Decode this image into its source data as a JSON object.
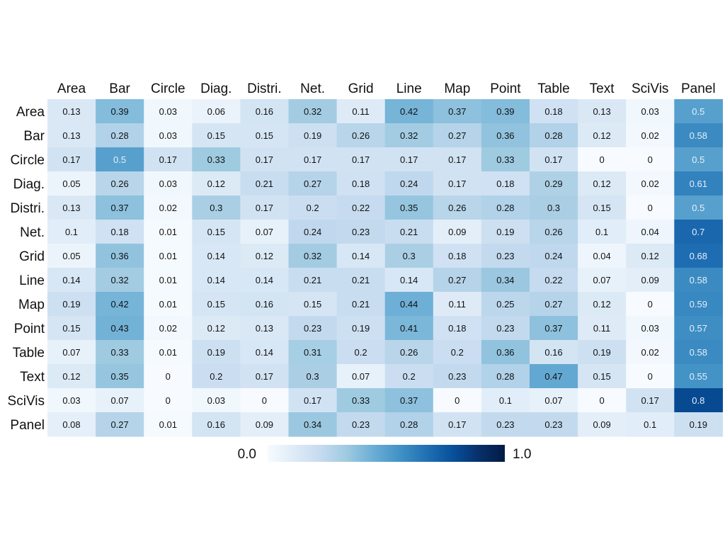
{
  "chart_data": {
    "type": "heatmap",
    "columns": [
      "Area",
      "Bar",
      "Circle",
      "Diag.",
      "Distri.",
      "Net.",
      "Grid",
      "Line",
      "Map",
      "Point",
      "Table",
      "Text",
      "SciVis",
      "Panel"
    ],
    "rows": [
      "Area",
      "Bar",
      "Circle",
      "Diag.",
      "Distri.",
      "Net.",
      "Grid",
      "Line",
      "Map",
      "Point",
      "Table",
      "Text",
      "SciVis",
      "Panel"
    ],
    "values": [
      [
        0.13,
        0.39,
        0.03,
        0.06,
        0.16,
        0.32,
        0.11,
        0.42,
        0.37,
        0.39,
        0.18,
        0.13,
        0.03,
        0.5
      ],
      [
        0.13,
        0.28,
        0.03,
        0.15,
        0.15,
        0.19,
        0.26,
        0.32,
        0.27,
        0.36,
        0.28,
        0.12,
        0.02,
        0.58
      ],
      [
        0.17,
        0.5,
        0.17,
        0.33,
        0.17,
        0.17,
        0.17,
        0.17,
        0.17,
        0.33,
        0.17,
        0,
        0,
        0.5
      ],
      [
        0.05,
        0.26,
        0.03,
        0.12,
        0.21,
        0.27,
        0.18,
        0.24,
        0.17,
        0.18,
        0.29,
        0.12,
        0.02,
        0.61
      ],
      [
        0.13,
        0.37,
        0.02,
        0.3,
        0.17,
        0.2,
        0.22,
        0.35,
        0.26,
        0.28,
        0.3,
        0.15,
        0,
        0.5
      ],
      [
        0.1,
        0.18,
        0.01,
        0.15,
        0.07,
        0.24,
        0.23,
        0.21,
        0.09,
        0.19,
        0.26,
        0.1,
        0.04,
        0.7
      ],
      [
        0.05,
        0.36,
        0.01,
        0.14,
        0.12,
        0.32,
        0.14,
        0.3,
        0.18,
        0.23,
        0.24,
        0.04,
        0.12,
        0.68
      ],
      [
        0.14,
        0.32,
        0.01,
        0.14,
        0.14,
        0.21,
        0.21,
        0.14,
        0.27,
        0.34,
        0.22,
        0.07,
        0.09,
        0.58
      ],
      [
        0.19,
        0.42,
        0.01,
        0.15,
        0.16,
        0.15,
        0.21,
        0.44,
        0.11,
        0.25,
        0.27,
        0.12,
        0,
        0.59
      ],
      [
        0.15,
        0.43,
        0.02,
        0.12,
        0.13,
        0.23,
        0.19,
        0.41,
        0.18,
        0.23,
        0.37,
        0.11,
        0.03,
        0.57
      ],
      [
        0.07,
        0.33,
        0.01,
        0.19,
        0.14,
        0.31,
        0.2,
        0.26,
        0.2,
        0.36,
        0.16,
        0.19,
        0.02,
        0.58
      ],
      [
        0.12,
        0.35,
        0,
        0.2,
        0.17,
        0.3,
        0.07,
        0.2,
        0.23,
        0.28,
        0.47,
        0.15,
        0,
        0.55
      ],
      [
        0.03,
        0.07,
        0,
        0.03,
        0,
        0.17,
        0.33,
        0.37,
        0,
        0.1,
        0.07,
        0,
        0.17,
        0.8
      ],
      [
        0.08,
        0.27,
        0.01,
        0.16,
        0.09,
        0.34,
        0.23,
        0.28,
        0.17,
        0.23,
        0.23,
        0.09,
        0.1,
        0.19
      ]
    ],
    "colorbar": {
      "min": 0,
      "max": 1,
      "min_label": "0.0",
      "max_label": "1.0"
    },
    "colorscale": [
      "#f7fbff",
      "#deebf7",
      "#c6dbef",
      "#9ecae1",
      "#6baed6",
      "#4292c6",
      "#2171b5",
      "#08519c",
      "#08306b",
      "#021a44"
    ],
    "title": "",
    "xlabel": "",
    "ylabel": ""
  }
}
